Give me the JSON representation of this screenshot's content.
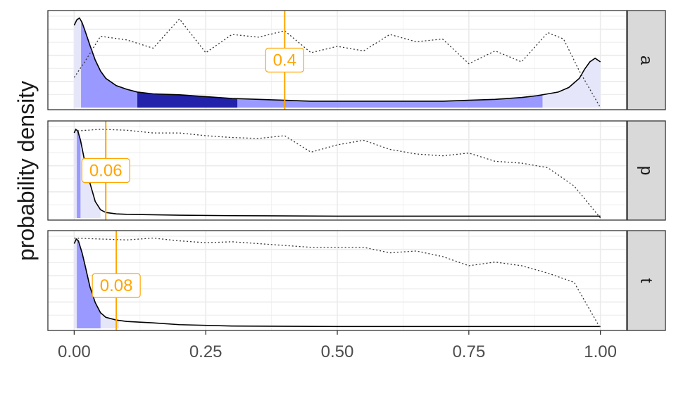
{
  "chart_data": {
    "type": "area",
    "ylabel": "probability density",
    "xlabel": "",
    "xlim": [
      -0.05,
      1.05
    ],
    "x_ticks": [
      0,
      0.25,
      0.5,
      0.75,
      1
    ],
    "x_tick_labels": [
      "0.00",
      "0.25",
      "0.50",
      "0.75",
      "1.00"
    ],
    "grid": true,
    "legend": "none",
    "colors": {
      "density_line": "#000000",
      "dotted_line": "#333333",
      "annotation": "#ffa500",
      "strip_fill": "#d9d9d9",
      "bands": [
        "#e6e6fa",
        "#9999ff",
        "#2222aa"
      ]
    },
    "panels": [
      {
        "strip": "a",
        "annotation_x": 0.4,
        "annotation_label": "0.4",
        "annotation_y_frac": 0.5,
        "density": {
          "x": [
            0,
            0.005,
            0.01,
            0.015,
            0.02,
            0.03,
            0.04,
            0.05,
            0.06,
            0.08,
            0.1,
            0.12,
            0.15,
            0.2,
            0.25,
            0.3,
            0.35,
            0.4,
            0.45,
            0.5,
            0.55,
            0.6,
            0.65,
            0.7,
            0.75,
            0.8,
            0.85,
            0.88,
            0.9,
            0.92,
            0.94,
            0.96,
            0.97,
            0.98,
            0.99,
            1
          ],
          "y": [
            0.9,
            0.96,
            0.98,
            0.93,
            0.85,
            0.68,
            0.52,
            0.4,
            0.32,
            0.24,
            0.2,
            0.17,
            0.15,
            0.14,
            0.12,
            0.1,
            0.09,
            0.08,
            0.07,
            0.07,
            0.07,
            0.07,
            0.07,
            0.07,
            0.08,
            0.09,
            0.11,
            0.13,
            0.15,
            0.17,
            0.22,
            0.32,
            0.42,
            0.5,
            0.54,
            0.5
          ]
        },
        "dotted": {
          "x": [
            0,
            0.02,
            0.05,
            0.1,
            0.15,
            0.2,
            0.25,
            0.3,
            0.35,
            0.4,
            0.45,
            0.5,
            0.55,
            0.6,
            0.65,
            0.7,
            0.75,
            0.8,
            0.85,
            0.9,
            0.93,
            0.96,
            1
          ],
          "y": [
            0.33,
            0.5,
            0.78,
            0.74,
            0.65,
            0.97,
            0.6,
            0.8,
            0.77,
            0.84,
            0.6,
            0.67,
            0.62,
            0.8,
            0.72,
            0.75,
            0.48,
            0.62,
            0.5,
            0.82,
            0.75,
            0.4,
            0.0
          ]
        },
        "bands": [
          {
            "from": 0,
            "to": 1,
            "color": "#e6e6fa"
          },
          {
            "from": 0.013,
            "to": 0.89,
            "color": "#9999ff"
          },
          {
            "from": 0.12,
            "to": 0.31,
            "color": "#2222aa"
          }
        ]
      },
      {
        "strip": "p",
        "annotation_x": 0.06,
        "annotation_label": "0.06",
        "annotation_y_frac": 0.5,
        "density": {
          "x": [
            0,
            0.003,
            0.007,
            0.012,
            0.02,
            0.03,
            0.04,
            0.05,
            0.06,
            0.08,
            0.1,
            0.15,
            0.2,
            0.3,
            0.5,
            0.7,
            0.9,
            1
          ],
          "y": [
            0.93,
            0.97,
            0.95,
            0.85,
            0.62,
            0.38,
            0.18,
            0.09,
            0.06,
            0.045,
            0.04,
            0.035,
            0.03,
            0.025,
            0.02,
            0.02,
            0.02,
            0.02
          ]
        },
        "dotted": {
          "x": [
            0,
            0.05,
            0.1,
            0.15,
            0.2,
            0.25,
            0.3,
            0.35,
            0.4,
            0.45,
            0.5,
            0.55,
            0.6,
            0.65,
            0.7,
            0.75,
            0.8,
            0.85,
            0.9,
            0.95,
            1
          ],
          "y": [
            0.95,
            0.97,
            0.96,
            0.93,
            0.93,
            0.9,
            0.88,
            0.87,
            0.9,
            0.72,
            0.8,
            0.85,
            0.75,
            0.7,
            0.68,
            0.71,
            0.62,
            0.6,
            0.55,
            0.35,
            0.0
          ]
        },
        "bands": [
          {
            "from": 0,
            "to": 0.05,
            "color": "#e6e6fa"
          },
          {
            "from": 0.005,
            "to": 0.012,
            "color": "#9999ff"
          }
        ]
      },
      {
        "strip": "t",
        "annotation_x": 0.08,
        "annotation_label": "0.08",
        "annotation_y_frac": 0.55,
        "density": {
          "x": [
            0,
            0.004,
            0.008,
            0.015,
            0.02,
            0.03,
            0.04,
            0.05,
            0.06,
            0.08,
            0.1,
            0.15,
            0.2,
            0.3,
            0.5,
            0.7,
            0.9,
            1
          ],
          "y": [
            0.92,
            0.97,
            0.95,
            0.82,
            0.7,
            0.45,
            0.28,
            0.17,
            0.12,
            0.09,
            0.075,
            0.06,
            0.04,
            0.025,
            0.02,
            0.02,
            0.02,
            0.02
          ]
        },
        "dotted": {
          "x": [
            0,
            0.05,
            0.1,
            0.15,
            0.2,
            0.25,
            0.3,
            0.35,
            0.4,
            0.45,
            0.5,
            0.55,
            0.6,
            0.65,
            0.7,
            0.75,
            0.8,
            0.85,
            0.9,
            0.95,
            1
          ],
          "y": [
            0.98,
            0.97,
            0.96,
            0.98,
            0.95,
            0.93,
            0.94,
            0.92,
            0.9,
            0.88,
            0.88,
            0.88,
            0.82,
            0.84,
            0.78,
            0.68,
            0.72,
            0.68,
            0.6,
            0.5,
            0.0
          ]
        },
        "bands": [
          {
            "from": 0,
            "to": 0.085,
            "color": "#e6e6fa"
          },
          {
            "from": 0.005,
            "to": 0.05,
            "color": "#9999ff"
          }
        ]
      }
    ]
  }
}
